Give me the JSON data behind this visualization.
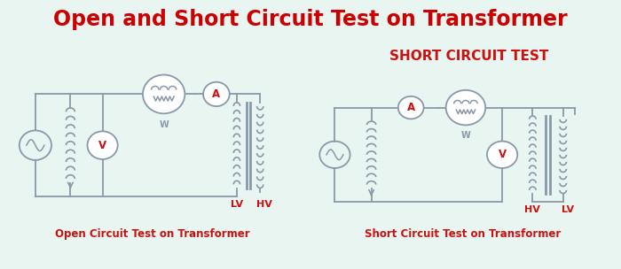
{
  "title": "Open and Short Circuit Test on Transformer",
  "title_bg": "#3dba8c",
  "title_color": "#cc0000",
  "body_bg": "#e8f5f0",
  "circuit_line_color": "#8899aa",
  "red_color": "#cc1111",
  "oc_label": "Open Circuit Test on Transformer",
  "sc_label": "Short Circuit Test on Transformer",
  "sc_title": "SHORT CIRCUIT TEST",
  "title_fontsize": 17,
  "label_fontsize": 8.5,
  "sc_title_fontsize": 11
}
